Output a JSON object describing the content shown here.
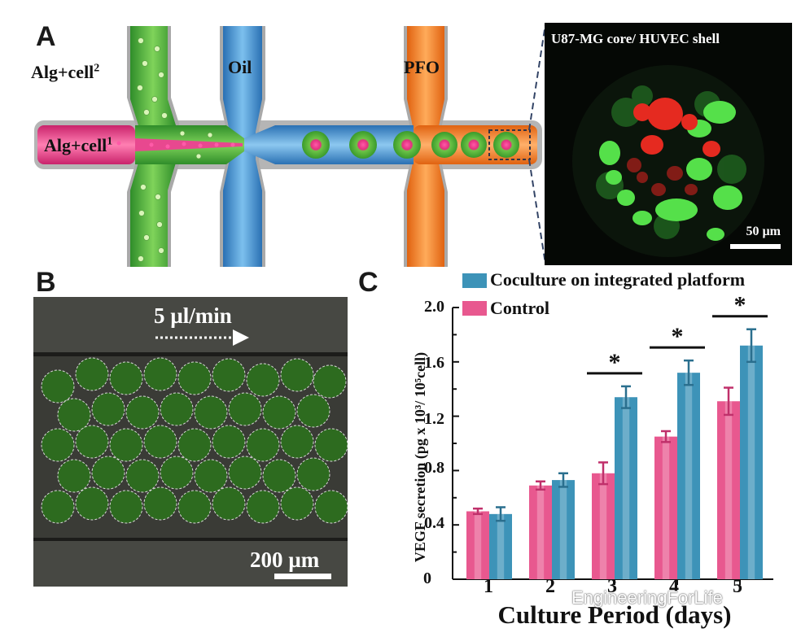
{
  "panel_a": {
    "letter": "A",
    "labels": {
      "alg_cell2": "Alg+cell",
      "alg_cell2_sup": "2",
      "oil": "Oil",
      "pfo": "PFO",
      "alg_cell1": "Alg+cell",
      "alg_cell1_sup": "1"
    },
    "colors": {
      "pink": "#e23d86",
      "green": "#3fae34",
      "blue": "#3a8fd0",
      "orange": "#f07a1e"
    },
    "micrograph": {
      "title": "U87-MG core/ HUVEC shell",
      "scale": "50 µm"
    }
  },
  "panel_b": {
    "letter": "B",
    "flow_rate": "5 µl/min",
    "scale": "200 µm"
  },
  "panel_c": {
    "letter": "C",
    "chart_data": {
      "type": "bar",
      "categories": [
        "1",
        "2",
        "3",
        "4",
        "5"
      ],
      "series": [
        {
          "name": "Control",
          "color": "#e8588f",
          "values": [
            0.5,
            0.69,
            0.78,
            1.05,
            1.31
          ],
          "errors": [
            0.02,
            0.03,
            0.08,
            0.04,
            0.1
          ]
        },
        {
          "name": "Coculture on integrated platform",
          "color": "#3d93b8",
          "values": [
            0.48,
            0.73,
            1.34,
            1.52,
            1.72
          ],
          "errors": [
            0.05,
            0.05,
            0.08,
            0.09,
            0.12
          ]
        }
      ],
      "ylim": [
        0,
        2.0
      ],
      "yticks": [
        "0",
        "0.4",
        "0.8",
        "1.2",
        "1.6",
        "2.0"
      ],
      "xlabel": "Culture Period (days)",
      "ylabel": "VEGF secretion (pg x 10³/ 10⁵cell)",
      "significance": [
        {
          "category": "3",
          "mark": "*"
        },
        {
          "category": "4",
          "mark": "*"
        },
        {
          "category": "5",
          "mark": "*"
        }
      ],
      "legend_position": "top"
    }
  },
  "watermark": "EngineeringForLife"
}
